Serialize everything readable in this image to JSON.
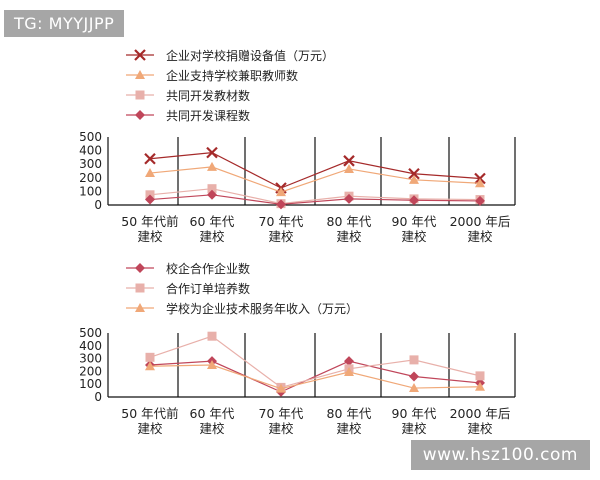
{
  "watermarks": {
    "top": "TG: MYYJJPP",
    "bottom": "www.hsz100.com"
  },
  "colors": {
    "dark_red": "#a52a2a",
    "orange": "#f0a878",
    "pink": "#e8b0aa",
    "magenta": "#c0465a",
    "axis": "#111111"
  },
  "chart_data": [
    {
      "type": "line",
      "categories": [
        [
          "50 年代前",
          "建校"
        ],
        [
          "60 年代",
          "建校"
        ],
        [
          "70 年代",
          "建校"
        ],
        [
          "80 年代",
          "建校"
        ],
        [
          "90 年代",
          "建校"
        ],
        [
          "2000 年后",
          "建校"
        ]
      ],
      "ylim": [
        0,
        500
      ],
      "yticks": [
        "0",
        "100",
        "200",
        "300",
        "400",
        "500"
      ],
      "legend_position": "top",
      "series": [
        {
          "name": "企业对学校捐赠设备值（万元）",
          "marker": "x",
          "color": "#a52a2a",
          "values": [
            340,
            385,
            125,
            325,
            230,
            195
          ]
        },
        {
          "name": "企业支持学校兼职教师数",
          "marker": "triangle",
          "color": "#f0a878",
          "values": [
            235,
            280,
            95,
            265,
            185,
            160
          ]
        },
        {
          "name": "共同开发教材数",
          "marker": "square",
          "color": "#e8b0aa",
          "values": [
            75,
            120,
            10,
            65,
            45,
            40
          ]
        },
        {
          "name": "共同开发课程数",
          "marker": "diamond",
          "color": "#c0465a",
          "values": [
            40,
            75,
            5,
            45,
            35,
            30
          ]
        }
      ]
    },
    {
      "type": "line",
      "categories": [
        [
          "50 年代前",
          "建校"
        ],
        [
          "60 年代",
          "建校"
        ],
        [
          "70 年代",
          "建校"
        ],
        [
          "80 年代",
          "建校"
        ],
        [
          "90 年代",
          "建校"
        ],
        [
          "2000 年后",
          "建校"
        ]
      ],
      "ylim": [
        0,
        500
      ],
      "yticks": [
        "0",
        "100",
        "200",
        "300",
        "400",
        "500"
      ],
      "legend_position": "top",
      "series": [
        {
          "name": "校企合作企业数",
          "marker": "diamond",
          "color": "#c0465a",
          "values": [
            250,
            280,
            40,
            280,
            160,
            110
          ]
        },
        {
          "name": "合作订单培养数",
          "marker": "square",
          "color": "#e8b0aa",
          "values": [
            310,
            475,
            75,
            220,
            290,
            165
          ]
        },
        {
          "name": "学校为企业技术服务年收入（万元）",
          "marker": "triangle",
          "color": "#f0a878",
          "values": [
            240,
            250,
            65,
            195,
            70,
            80
          ]
        }
      ]
    }
  ]
}
